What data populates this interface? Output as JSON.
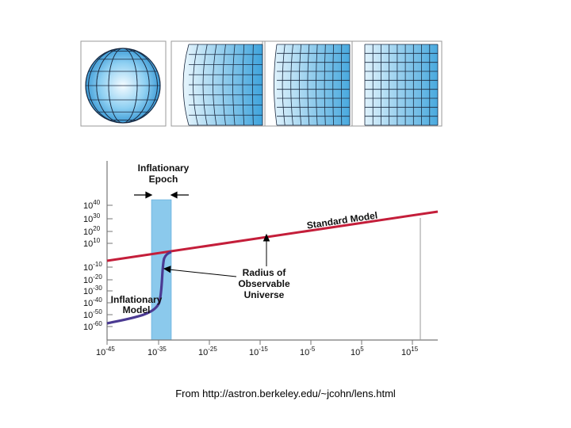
{
  "colors": {
    "sphere_light": "#e9f6fd",
    "sphere_dark": "#2e97d6",
    "band": "#7ec3ea",
    "standard_line": "#c41e3a",
    "inflation_line": "#4b3a92",
    "axis": "#666666",
    "grid_line": "#101828"
  },
  "panels": {
    "count": 4,
    "description_labels": [
      "sphere",
      "zoom-1",
      "zoom-2",
      "zoom-3"
    ]
  },
  "chart_data": {
    "type": "line",
    "x_ticks": [
      {
        "base": "10",
        "exp": "-45"
      },
      {
        "base": "10",
        "exp": "-35"
      },
      {
        "base": "10",
        "exp": "-25"
      },
      {
        "base": "10",
        "exp": "-15"
      },
      {
        "base": "10",
        "exp": "-5"
      },
      {
        "base": "10",
        "exp": "5"
      },
      {
        "base": "10",
        "exp": "15"
      }
    ],
    "y_ticks": [
      {
        "base": "10",
        "exp": "40"
      },
      {
        "base": "10",
        "exp": "30"
      },
      {
        "base": "10",
        "exp": "20"
      },
      {
        "base": "10",
        "exp": "10"
      },
      {
        "base": "10",
        "exp": "-10"
      },
      {
        "base": "10",
        "exp": "-20"
      },
      {
        "base": "10",
        "exp": "-30"
      },
      {
        "base": "10",
        "exp": "-40"
      },
      {
        "base": "10",
        "exp": "-50"
      },
      {
        "base": "10",
        "exp": "-60"
      }
    ],
    "labels": {
      "epoch_line1": "Inflationary",
      "epoch_line2": "Epoch",
      "standard_model": "Standard Model",
      "radius_line1": "Radius of",
      "radius_line2": "Observable",
      "radius_line3": "Universe",
      "inflationary_line1": "Inflationary",
      "inflationary_line2": "Model"
    }
  },
  "caption": "From http://astron.berkeley.edu/~jcohn/lens.html"
}
